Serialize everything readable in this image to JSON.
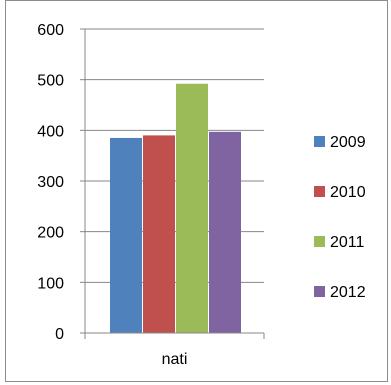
{
  "chart_data": {
    "type": "bar",
    "categories": [
      "nati"
    ],
    "series": [
      {
        "name": "2009",
        "values": [
          385
        ],
        "color": "#4f81bd"
      },
      {
        "name": "2010",
        "values": [
          390
        ],
        "color": "#c0504d"
      },
      {
        "name": "2011",
        "values": [
          492
        ],
        "color": "#9bbb59"
      },
      {
        "name": "2012",
        "values": [
          397
        ],
        "color": "#8064a2"
      }
    ],
    "ylim": [
      0,
      600
    ],
    "yticks": [
      0,
      100,
      200,
      300,
      400,
      500,
      600
    ],
    "ytick_labels": [
      "0",
      "100",
      "200",
      "300",
      "400",
      "500",
      "600"
    ],
    "grid": true,
    "legend_position": "right"
  }
}
